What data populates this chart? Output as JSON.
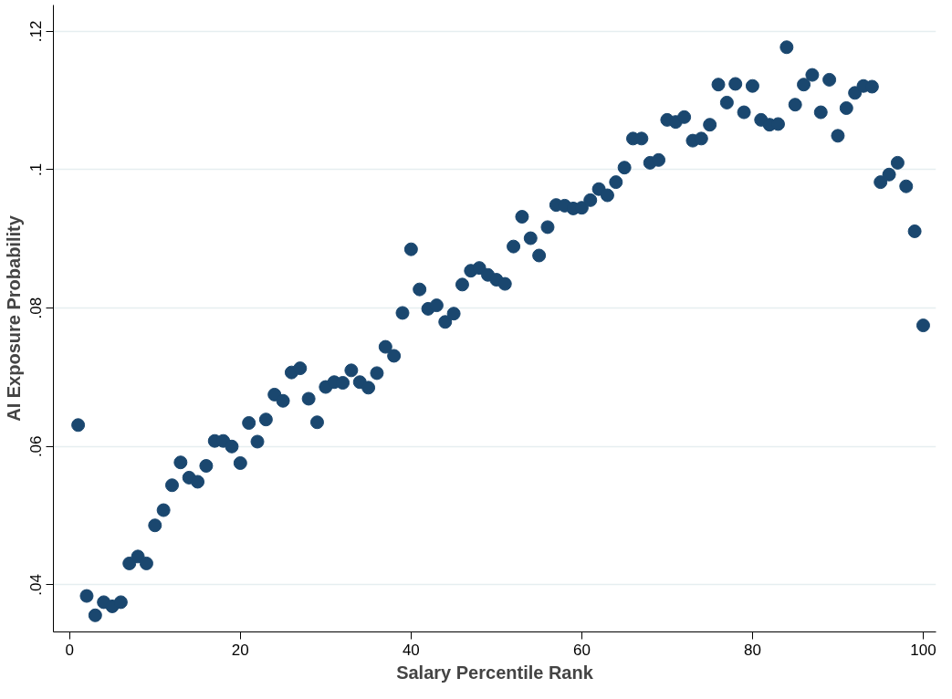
{
  "chart_data": {
    "type": "scatter",
    "xlabel": "Salary Percentile Rank",
    "ylabel": "AI Exposure Probability",
    "x": [
      1,
      2,
      3,
      4,
      5,
      6,
      7,
      8,
      9,
      10,
      11,
      12,
      13,
      14,
      15,
      16,
      17,
      18,
      19,
      20,
      21,
      22,
      23,
      24,
      25,
      26,
      27,
      28,
      29,
      30,
      31,
      32,
      33,
      34,
      35,
      36,
      37,
      38,
      39,
      40,
      41,
      42,
      43,
      44,
      45,
      46,
      47,
      48,
      49,
      50,
      51,
      52,
      53,
      54,
      55,
      56,
      57,
      58,
      59,
      60,
      61,
      62,
      63,
      64,
      65,
      66,
      67,
      68,
      69,
      70,
      71,
      72,
      73,
      74,
      75,
      76,
      77,
      78,
      79,
      80,
      81,
      82,
      83,
      84,
      85,
      86,
      87,
      88,
      89,
      90,
      91,
      92,
      93,
      94,
      95,
      96,
      97,
      98,
      99,
      100
    ],
    "series": [
      {
        "color": "#1a476f",
        "values": [
          0.0631,
          0.0384,
          0.0356,
          0.0375,
          0.0369,
          0.0375,
          0.0431,
          0.0441,
          0.0431,
          0.0486,
          0.0508,
          0.0544,
          0.0577,
          0.0555,
          0.0549,
          0.0572,
          0.0608,
          0.0608,
          0.06,
          0.0576,
          0.0634,
          0.0607,
          0.0639,
          0.0675,
          0.0666,
          0.0707,
          0.0713,
          0.0669,
          0.0635,
          0.0686,
          0.0693,
          0.0692,
          0.071,
          0.0693,
          0.0685,
          0.0706,
          0.0744,
          0.0731,
          0.0793,
          0.0885,
          0.0827,
          0.0799,
          0.0804,
          0.078,
          0.0792,
          0.0834,
          0.0854,
          0.0858,
          0.0848,
          0.0841,
          0.0835,
          0.0889,
          0.0932,
          0.0901,
          0.0876,
          0.0917,
          0.0949,
          0.0948,
          0.0944,
          0.0945,
          0.0956,
          0.0972,
          0.0963,
          0.0982,
          0.1003,
          0.1045,
          0.1045,
          0.101,
          0.1014,
          0.1072,
          0.1069,
          0.1076,
          0.1042,
          0.1045,
          0.1065,
          0.1123,
          0.1097,
          0.1124,
          0.1083,
          0.1121,
          0.1072,
          0.1065,
          0.1066,
          0.1177,
          0.1094,
          0.1123,
          0.1137,
          0.1083,
          0.113,
          0.1049,
          0.1089,
          0.1111,
          0.1121,
          0.112,
          0.0982,
          0.0993,
          0.101,
          0.0976,
          0.0911,
          0.0775
        ]
      }
    ],
    "xlim": [
      -1.9,
      101.5
    ],
    "ylim": [
      0.0332,
      0.1238
    ],
    "xticks": [
      0,
      20,
      40,
      60,
      80,
      100
    ],
    "yticks": [
      {
        "value": 0.04,
        "label": ".04"
      },
      {
        "value": 0.06,
        "label": ".06"
      },
      {
        "value": 0.08,
        "label": ".08"
      },
      {
        "value": 0.1,
        "label": ".1"
      },
      {
        "value": 0.12,
        "label": ".12"
      }
    ],
    "grid": "y",
    "marker": "circle"
  }
}
